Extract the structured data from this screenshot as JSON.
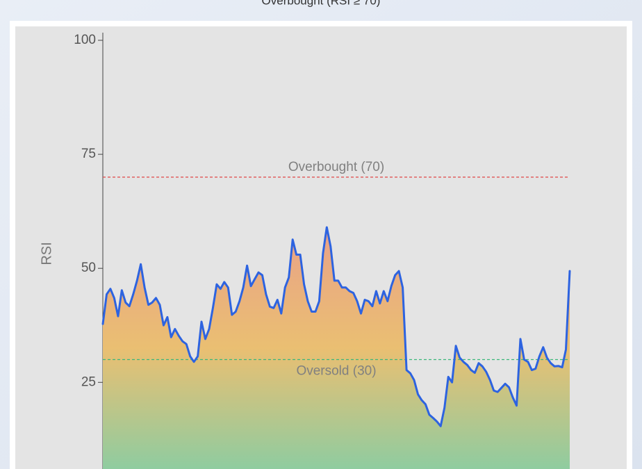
{
  "chart_data": {
    "type": "line",
    "title": "Overbought (RSI ≥ 70)",
    "y_label": "RSI",
    "values": [
      37.8,
      44.3,
      45.5,
      43.5,
      39.5,
      45.2,
      42.5,
      41.7,
      44.3,
      47.3,
      50.9,
      45.8,
      42.0,
      42.5,
      43.5,
      42.0,
      37.5,
      39.3,
      34.9,
      36.7,
      35.2,
      34.0,
      33.4,
      30.7,
      29.5,
      30.7,
      38.3,
      34.5,
      36.7,
      41.3,
      46.5,
      45.5,
      47.0,
      45.8,
      39.8,
      40.5,
      42.8,
      45.8,
      50.6,
      46.1,
      47.6,
      49.1,
      48.5,
      44.3,
      41.6,
      41.3,
      43.1,
      40.1,
      45.8,
      48.0,
      56.3,
      53.0,
      53.0,
      46.5,
      42.8,
      40.5,
      40.5,
      42.8,
      53.3,
      59.0,
      54.8,
      47.3,
      47.3,
      45.8,
      45.8,
      45.0,
      44.6,
      42.8,
      40.1,
      43.1,
      42.8,
      41.7,
      45.0,
      42.3,
      45.0,
      42.8,
      46.1,
      48.5,
      49.4,
      45.8,
      27.7,
      27.0,
      25.5,
      22.4,
      21.1,
      20.2,
      17.9,
      17.2,
      16.4,
      15.4,
      19.4,
      26.2,
      25.0,
      33.0,
      30.4,
      29.5,
      28.8,
      27.7,
      27.1,
      29.2,
      28.5,
      27.3,
      25.5,
      23.2,
      22.9,
      23.8,
      24.7,
      23.9,
      21.7,
      19.9,
      34.5,
      30.0,
      29.5,
      27.7,
      28.0,
      30.7,
      32.7,
      30.4,
      29.2,
      28.5,
      28.6,
      28.3,
      32.2,
      49.4
    ],
    "color": "#2d63e0",
    "fill_gradient": [
      "#e9a188",
      "#eabf72",
      "#8fcca0"
    ],
    "ylim": [
      6,
      100
    ],
    "yticks": [
      25,
      50,
      75,
      100
    ],
    "reference_lines": [
      {
        "value": 70,
        "label": "Overbought (70)",
        "color": "#e05555"
      },
      {
        "value": 30,
        "label": "Oversold (30)",
        "color": "#3bb77a"
      }
    ]
  }
}
